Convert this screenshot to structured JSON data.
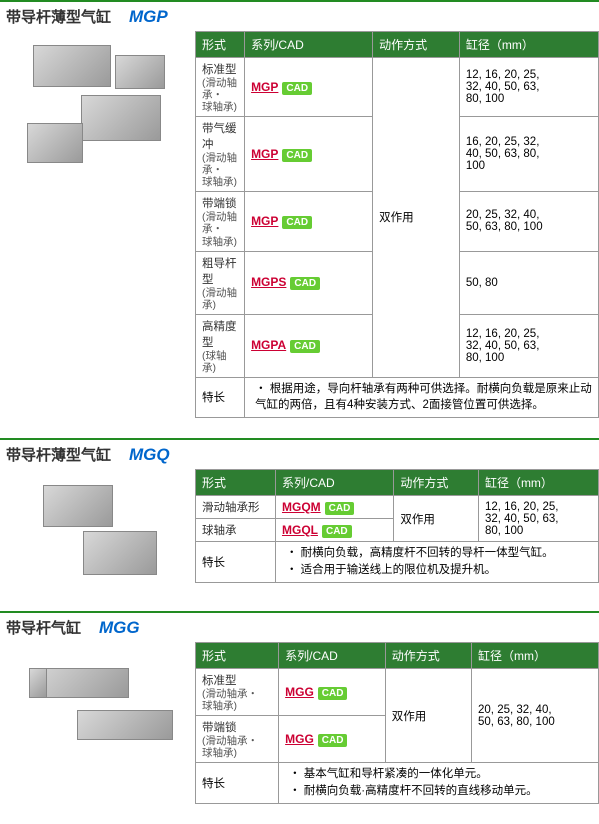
{
  "sections": [
    {
      "title_cn": "带导杆薄型气缸",
      "title_model": "MGP",
      "headers": [
        "形式",
        "系列/CAD",
        "动作方式",
        "缸径（mm）"
      ],
      "action_rowspan": 5,
      "action": "双作用",
      "rows": [
        {
          "type": "标准型",
          "sub": "(滑动轴承・\n球轴承)",
          "series": "MGP",
          "bore": "12, 16, 20, 25,\n32, 40, 50, 63,\n80, 100"
        },
        {
          "type": "带气缓冲",
          "sub": "(滑动轴承・\n球轴承)",
          "series": "MGP",
          "bore": "16, 20, 25, 32,\n40, 50, 63, 80,\n100"
        },
        {
          "type": "带端锁",
          "sub": "(滑动轴承・\n球轴承)",
          "series": "MGP",
          "bore": "20, 25, 32, 40,\n50, 63, 80, 100"
        },
        {
          "type": "粗导杆型",
          "sub": "(滑动轴承)",
          "series": "MGPS",
          "bore": "50, 80"
        },
        {
          "type": "高精度型",
          "sub": "(球轴承)",
          "series": "MGPA",
          "bore": "12, 16, 20, 25,\n32, 40, 50, 63,\n80, 100"
        }
      ],
      "feature_label": "特长",
      "feature_text": "・ 根据用途，导向杆轴承有两种可供选择。耐横向负载是原来止动气缸的两倍，且有4种安装方式、2面接管位置可供选择。"
    },
    {
      "title_cn": "带导杆薄型气缸",
      "title_model": "MGQ",
      "headers": [
        "形式",
        "系列/CAD",
        "动作方式",
        "缸径（mm）"
      ],
      "action_rowspan": 2,
      "action": "双作用",
      "bore_rowspan": 2,
      "bore_shared": "12, 16, 20, 25,\n32, 40, 50, 63,\n80, 100",
      "rows": [
        {
          "type": "滑动轴承形",
          "series": "MGQM"
        },
        {
          "type": "球轴承",
          "series": "MGQL"
        }
      ],
      "feature_label": "特长",
      "feature_text": "・ 耐横向负载，高精度杆不回转的导杆一体型气缸。\n・ 适合用于输送线上的限位机及提升机。"
    },
    {
      "title_cn": "带导杆气缸",
      "title_model": "MGG",
      "headers": [
        "形式",
        "系列/CAD",
        "动作方式",
        "缸径（mm）"
      ],
      "action_rowspan": 2,
      "action": "双作用",
      "bore_rowspan": 2,
      "bore_shared": "20, 25, 32, 40,\n50, 63, 80, 100",
      "rows": [
        {
          "type": "标准型",
          "sub": "(滑动轴承・\n球轴承)",
          "series": "MGG"
        },
        {
          "type": "带端锁",
          "sub": "(滑动轴承・\n球轴承)",
          "series": "MGG"
        }
      ],
      "feature_label": "特长",
      "feature_text": "・ 基本气缸和导杆紧凑的一体化单元。\n・ 耐横向负载·高精度杆不回转的直线移动单元。"
    }
  ],
  "cad_label": "CAD",
  "colors": {
    "header_bg": "#2e7d32",
    "link": "#cc0033",
    "cad_bg": "#66cc33",
    "border": "#999999",
    "title_model": "#0066cc",
    "divider": "#228b22"
  }
}
